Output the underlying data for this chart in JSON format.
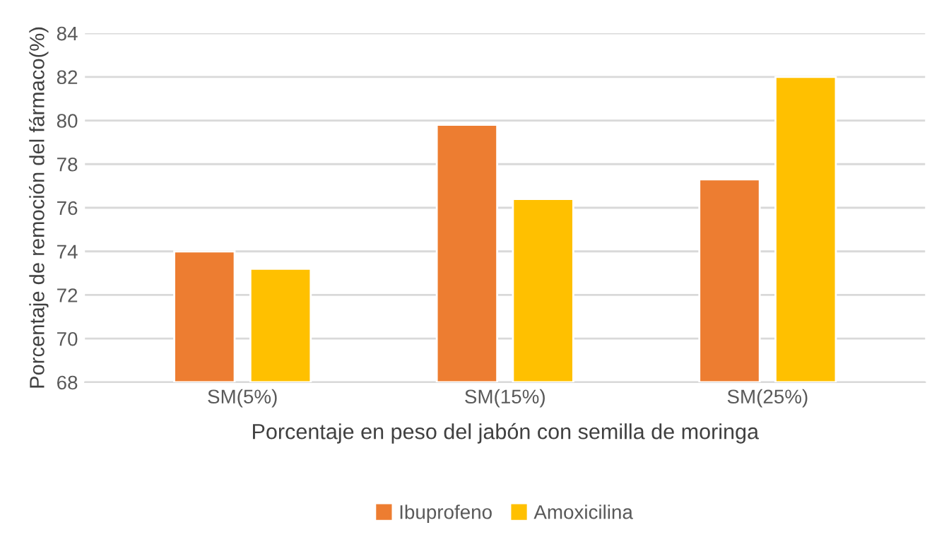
{
  "chart_data": {
    "type": "bar",
    "categories": [
      "SM(5%)",
      "SM(15%)",
      "SM(25%)"
    ],
    "xlabel": "Porcentaje en peso del jabón con semilla de moringa",
    "ylabel": "Porcentaje de remoción del fármaco(%)",
    "series": [
      {
        "name": "Ibuprofeno",
        "color": "#ed7d31",
        "values": [
          74.0,
          79.8,
          77.3
        ]
      },
      {
        "name": "Amoxicilina",
        "color": "#ffc000",
        "values": [
          73.2,
          76.4,
          82.0
        ]
      }
    ],
    "ylim": [
      68,
      84
    ],
    "yticks": [
      68,
      70,
      72,
      74,
      76,
      78,
      80,
      82,
      84
    ],
    "grid": "y",
    "legend": "bottom"
  }
}
